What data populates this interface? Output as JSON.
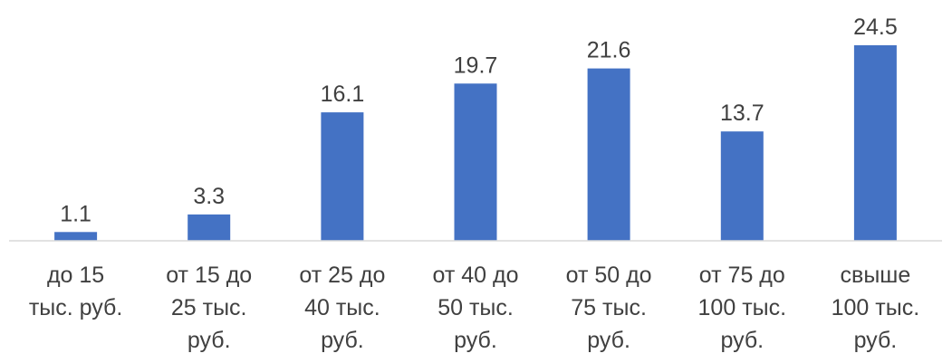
{
  "chart_data": {
    "type": "bar",
    "categories": [
      [
        "до 15",
        "тыс. руб."
      ],
      [
        "от 15 до",
        "25 тыс.",
        "руб."
      ],
      [
        "от 25 до",
        "40 тыс.",
        "руб."
      ],
      [
        "от 40 до",
        "50 тыс.",
        "руб."
      ],
      [
        "от 50 до",
        "75 тыс.",
        "руб."
      ],
      [
        "от 75 до",
        "100 тыс.",
        "руб."
      ],
      [
        "свыше",
        "100 тыс.",
        "руб."
      ]
    ],
    "values": [
      1.1,
      3.3,
      16.1,
      19.7,
      21.6,
      13.7,
      24.5
    ],
    "data_labels": [
      "1.1",
      "3.3",
      "16.1",
      "19.7",
      "21.6",
      "13.7",
      "24.5"
    ],
    "title": "",
    "xlabel": "",
    "ylabel": "",
    "ylim": [
      0,
      24.5
    ],
    "grid": false,
    "legend": "none",
    "colors": {
      "bar": "#4472C4",
      "axis": "#D9D9D9",
      "text": "#404040"
    }
  }
}
